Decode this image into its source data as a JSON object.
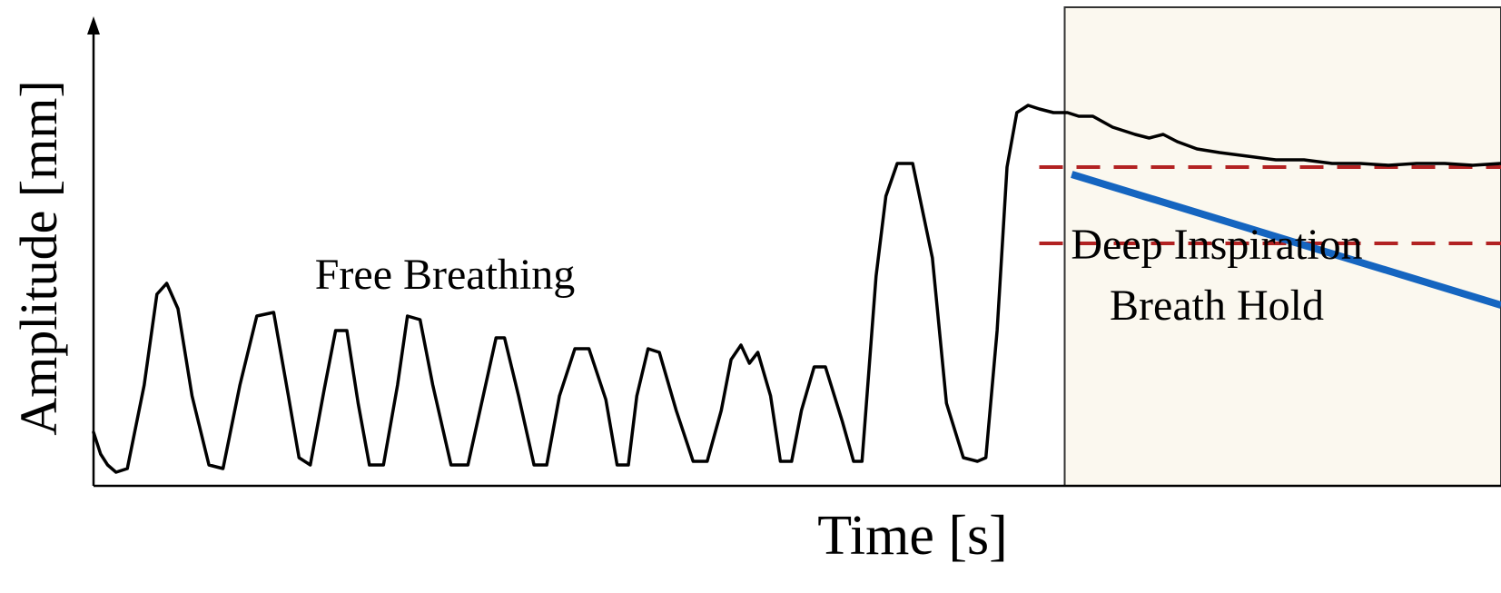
{
  "chart_data": {
    "type": "line",
    "title": "",
    "xlabel": "Time [s]",
    "ylabel": "Amplitude [mm]",
    "xlim": [
      0,
      100
    ],
    "ylim": [
      0,
      100
    ],
    "grid": false,
    "ticks": "none",
    "annotations": {
      "free_breathing": "Free Breathing",
      "dibh_line1": "Deep Inspiration",
      "dibh_line2": "Breath Hold"
    },
    "regions": [
      {
        "name": "Deep Inspiration Breath Hold",
        "x_start": 69,
        "x_end": 100,
        "color": "#fbf8ef"
      }
    ],
    "threshold_lines": [
      {
        "y": 85,
        "color": "#b22222",
        "style": "dashed"
      },
      {
        "y": 64,
        "color": "#b22222",
        "style": "dashed"
      }
    ],
    "trend_line": {
      "x": [
        69.5,
        100
      ],
      "y": [
        83,
        47
      ],
      "color": "#1565c0"
    },
    "series": [
      {
        "color": "#000000",
        "x": [
          0,
          0.5,
          1,
          1.6,
          2.4,
          3.6,
          4.5,
          5.2,
          6,
          7,
          8.2,
          9.2,
          10.4,
          11.6,
          12.8,
          13.8,
          14.6,
          15.4,
          16.4,
          17.2,
          18,
          18.8,
          19.6,
          20.6,
          21.6,
          22.3,
          23.2,
          24.1,
          25.4,
          26.6,
          27.8,
          28.6,
          29.2,
          30.2,
          31.3,
          32.2,
          33.1,
          34.2,
          35.2,
          36.4,
          37.2,
          38,
          38.6,
          39.4,
          40.2,
          41.4,
          42.6,
          43.6,
          44.6,
          45.3,
          46,
          46.6,
          47.2,
          48.1,
          48.8,
          49.6,
          50.3,
          51.2,
          52,
          53.2,
          54,
          54.6,
          55.6,
          56.3,
          57.1,
          58.2,
          59.6,
          60.6,
          61.8,
          62.8,
          63.4,
          64.2,
          64.9,
          65.6,
          66.4,
          67.2,
          68.2,
          69.2,
          70,
          71,
          72.4,
          74,
          75,
          76,
          77,
          78.4,
          80,
          82,
          84,
          86,
          88,
          90,
          92,
          94,
          96,
          98,
          100
        ],
        "y": [
          12,
          6,
          3,
          1,
          2,
          25,
          50,
          53,
          46,
          22,
          3,
          2,
          25,
          44,
          45,
          23,
          5,
          3,
          24,
          40,
          40,
          20,
          3,
          3,
          25,
          44,
          43,
          25,
          3,
          3,
          24,
          38,
          38,
          22,
          3,
          3,
          22,
          35,
          35,
          21,
          3,
          3,
          22,
          35,
          34,
          18,
          4,
          4,
          18,
          32,
          36,
          31,
          34,
          22,
          4,
          4,
          18,
          30,
          30,
          15,
          4,
          4,
          55,
          77,
          86,
          86,
          60,
          20,
          5,
          4,
          5,
          40,
          85,
          100,
          102,
          101,
          100,
          100,
          99,
          99,
          96,
          94,
          93,
          94,
          92,
          90,
          89,
          88,
          87,
          87,
          86,
          86,
          85.5,
          86,
          86,
          85.5,
          86
        ]
      }
    ]
  }
}
